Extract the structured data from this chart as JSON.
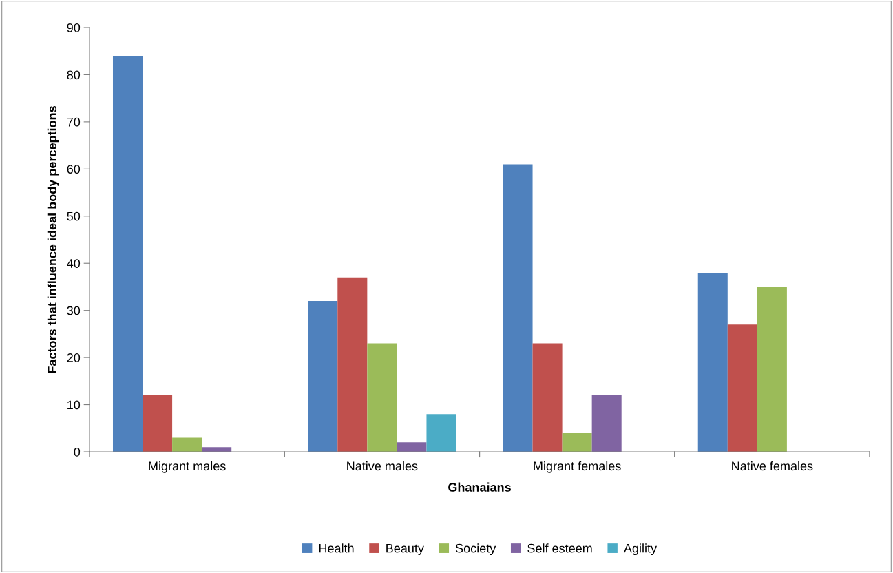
{
  "chart_data": {
    "type": "bar",
    "xlabel": "Ghanaians",
    "ylabel": "Factors that influence ideal body perceptions",
    "categories": [
      "Migrant males",
      "Native males",
      "Migrant females",
      "Native females"
    ],
    "series": [
      {
        "name": "Health",
        "color": "#4f81bd",
        "values": [
          84,
          32,
          61,
          38
        ]
      },
      {
        "name": "Beauty",
        "color": "#c0504d",
        "values": [
          12,
          37,
          23,
          27
        ]
      },
      {
        "name": "Society",
        "color": "#9bbb59",
        "values": [
          3,
          23,
          4,
          35
        ]
      },
      {
        "name": "Self esteem",
        "color": "#8064a2",
        "values": [
          1,
          2,
          12,
          null
        ]
      },
      {
        "name": "Agility",
        "color": "#4bacc6",
        "values": [
          null,
          8,
          null,
          null
        ]
      }
    ],
    "ylim": [
      0,
      90
    ],
    "yticks": [
      0,
      10,
      20,
      30,
      40,
      50,
      60,
      70,
      80,
      90
    ],
    "grid": false,
    "legend": "bottom"
  }
}
